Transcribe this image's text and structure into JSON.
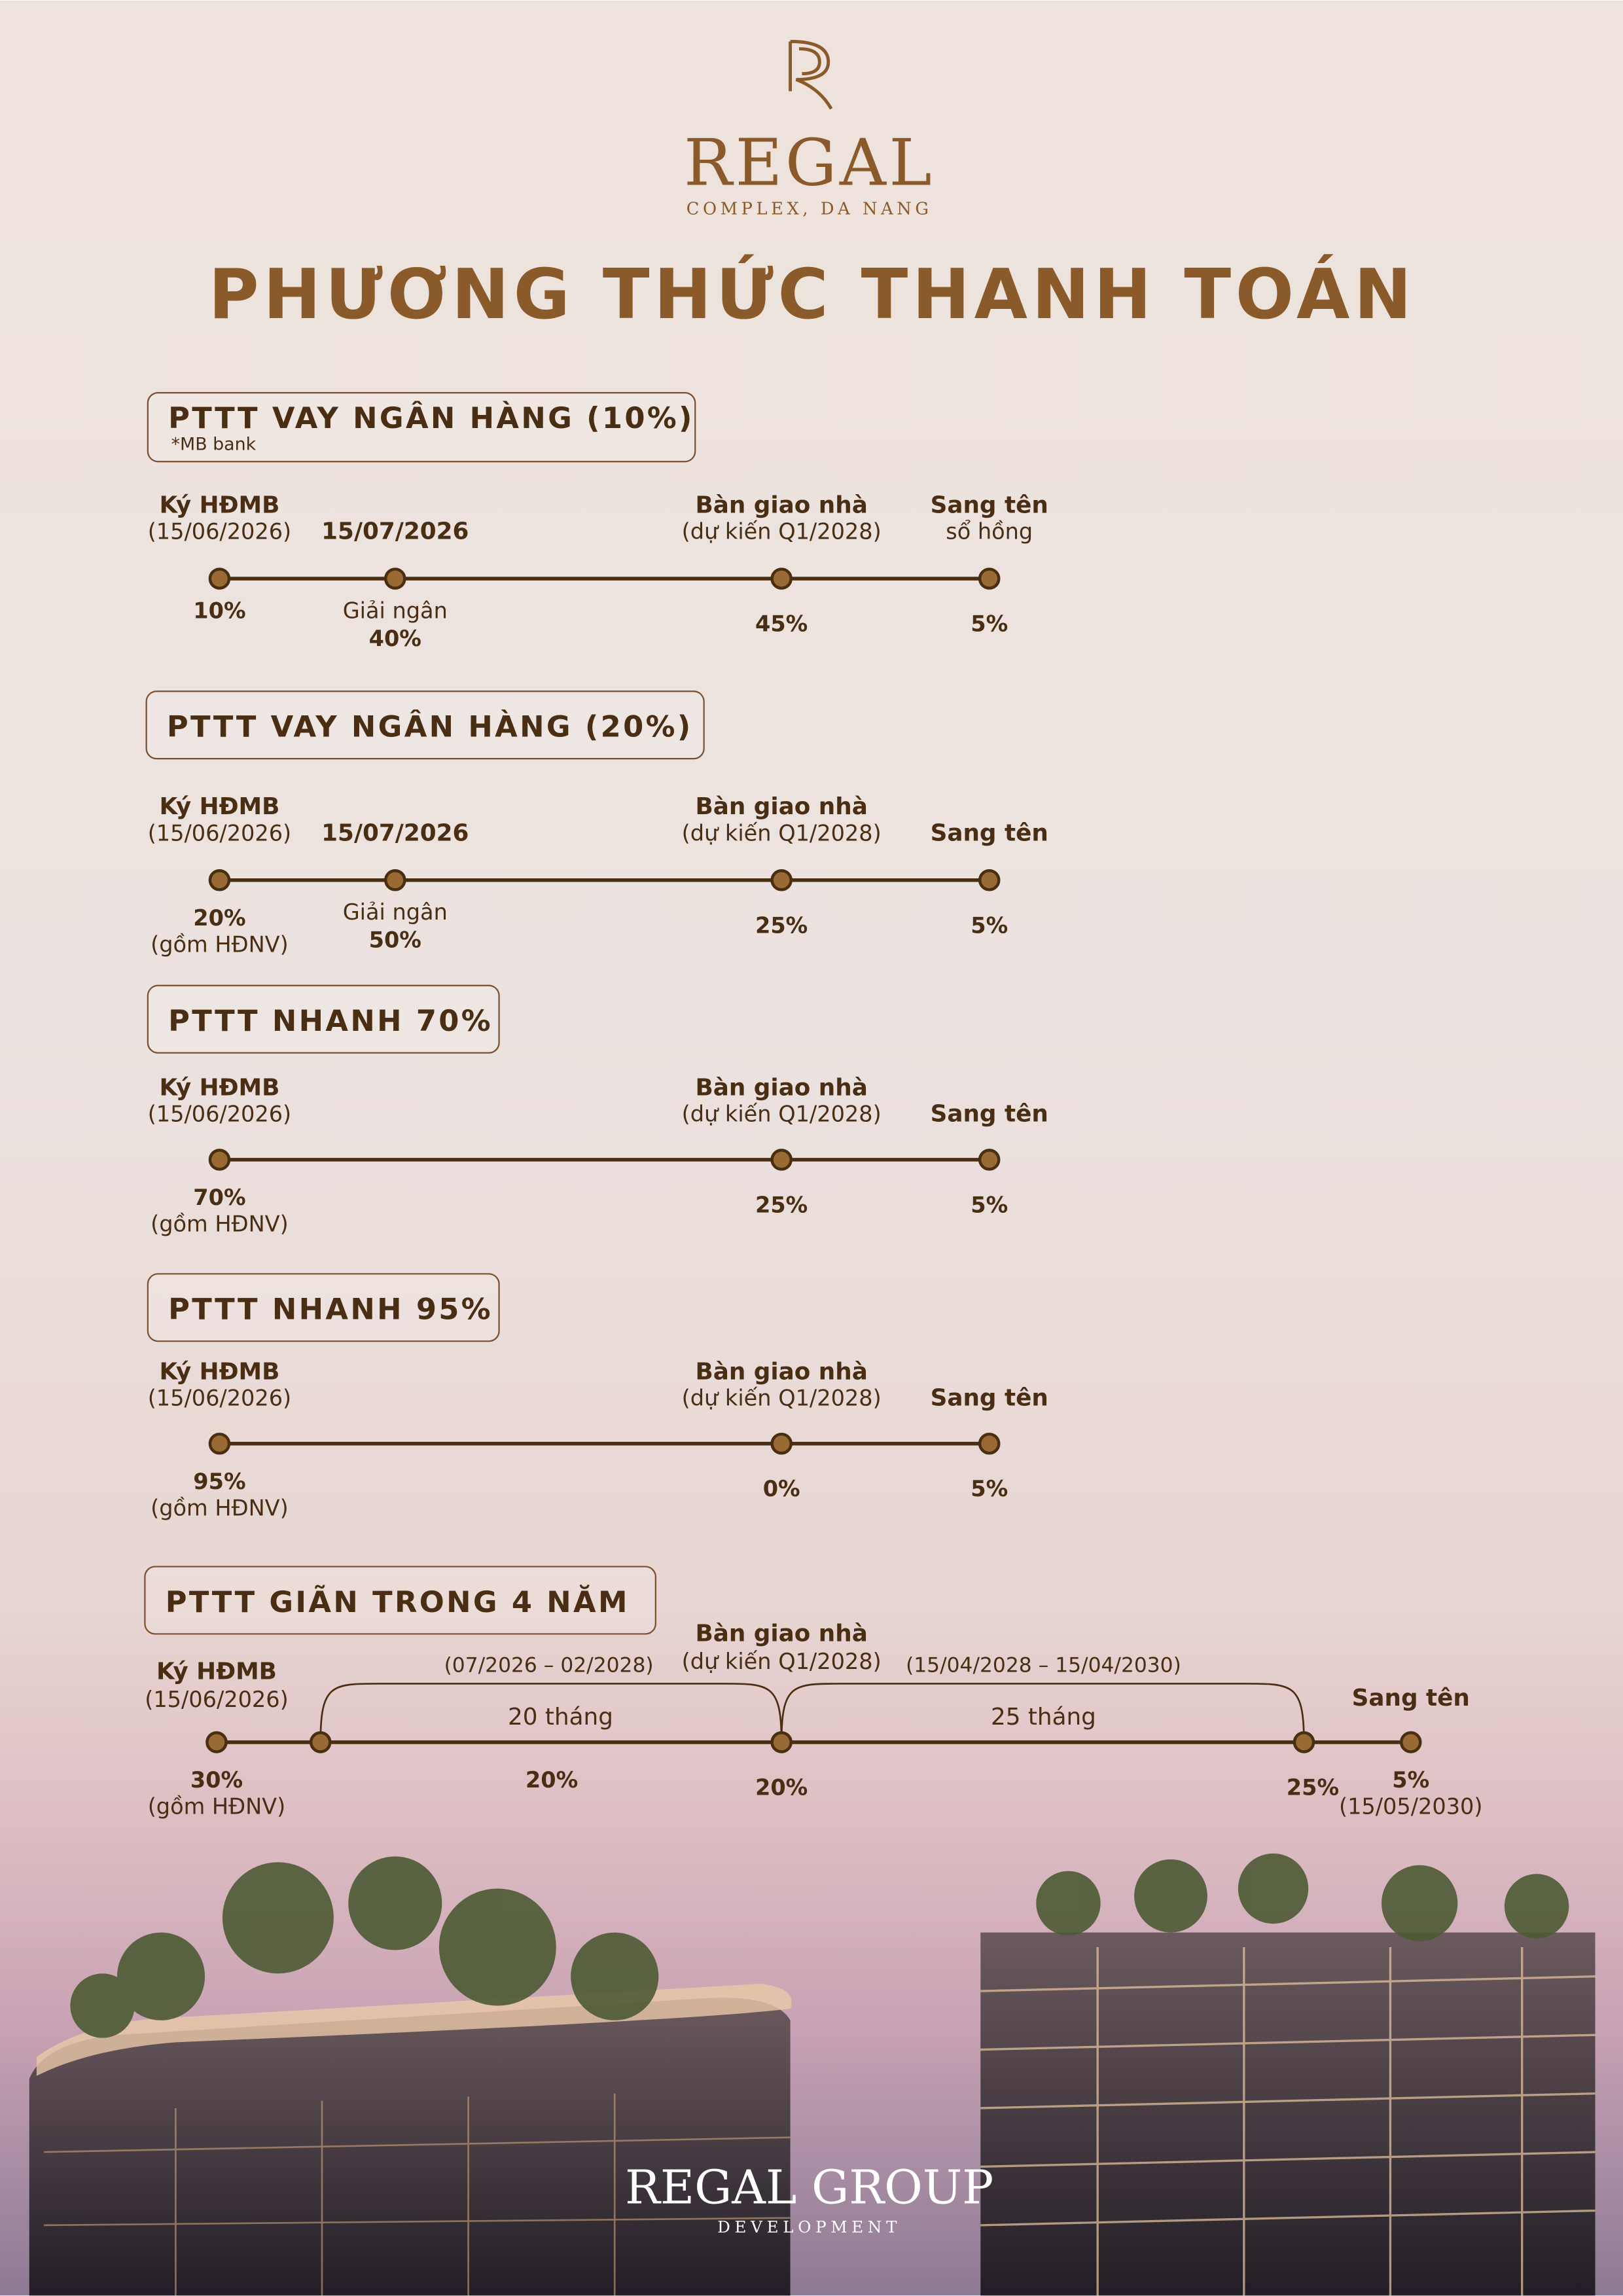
{
  "header": {
    "brand": "REGAL",
    "location": "COMPLEX, DA NANG",
    "title": "PHƯƠNG THỨC THANH TOÁN"
  },
  "plans": [
    {
      "title": "PTTT VAY NGÂN HÀNG (10%)",
      "note": "*MB bank",
      "milestones": [
        {
          "label": "Ký HĐMB",
          "sublabel": "(15/06/2026)",
          "value": "10%"
        },
        {
          "label": "15/07/2026",
          "value_caption": "Giải ngân",
          "value": "40%"
        },
        {
          "label": "Bàn giao nhà",
          "sublabel": "(dự kiến Q1/2028)",
          "value": "45%"
        },
        {
          "label": "Sang tên",
          "sublabel": "sổ hồng",
          "value": "5%"
        }
      ]
    },
    {
      "title": "PTTT VAY NGÂN HÀNG (20%)",
      "milestones": [
        {
          "label": "Ký HĐMB",
          "sublabel": "(15/06/2026)",
          "value": "20%",
          "value_note": "(gồm HĐNV)"
        },
        {
          "label": "15/07/2026",
          "value_caption": "Giải ngân",
          "value": "50%"
        },
        {
          "label": "Bàn giao nhà",
          "sublabel": "(dự kiến Q1/2028)",
          "value": "25%"
        },
        {
          "label": "Sang tên",
          "value": "5%"
        }
      ]
    },
    {
      "title": "PTTT NHANH 70%",
      "milestones": [
        {
          "label": "Ký HĐMB",
          "sublabel": "(15/06/2026)",
          "value": "70%",
          "value_note": "(gồm HĐNV)"
        },
        {
          "label": "Bàn giao nhà",
          "sublabel": "(dự kiến Q1/2028)",
          "value": "25%"
        },
        {
          "label": "Sang tên",
          "value": "5%"
        }
      ]
    },
    {
      "title": "PTTT NHANH 95%",
      "milestones": [
        {
          "label": "Ký HĐMB",
          "sublabel": "(15/06/2026)",
          "value": "95%",
          "value_note": "(gồm HĐNV)"
        },
        {
          "label": "Bàn giao nhà",
          "sublabel": "(dự kiến Q1/2028)",
          "value": "0%"
        },
        {
          "label": "Sang tên",
          "value": "5%"
        }
      ]
    },
    {
      "title": "PTTT GIÃN TRONG 4 NĂM",
      "milestones": [
        {
          "label": "Ký HĐMB",
          "sublabel": "(15/06/2026)",
          "value": "30%",
          "value_note": "(gồm HĐNV)"
        },
        {
          "label": "Bàn giao nhà",
          "sublabel": "(dự kiến Q1/2028)",
          "value": "20%"
        },
        {
          "value": "25%"
        },
        {
          "label": "Sang tên",
          "value": "5%",
          "value_note": "(15/05/2030)"
        }
      ],
      "periods": [
        {
          "range": "(07/2026 – 02/2028)",
          "duration": "20 tháng",
          "value": "20%"
        },
        {
          "range": "(15/04/2028 – 15/04/2030)",
          "duration": "25 tháng"
        }
      ]
    }
  ],
  "footer": {
    "brand": "REGAL GROUP",
    "tagline": "DEVELOPMENT"
  }
}
